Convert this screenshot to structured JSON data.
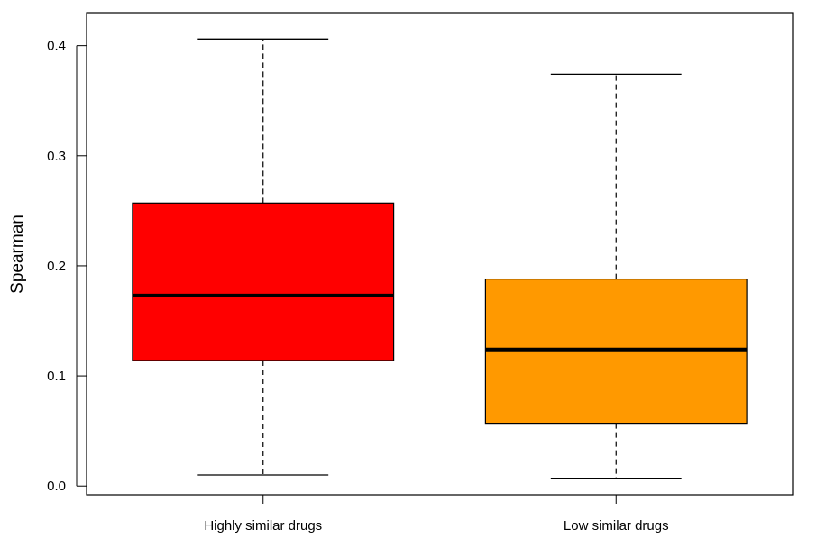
{
  "chart_data": {
    "type": "box",
    "title": "",
    "xlabel": "",
    "ylabel": "Spearman",
    "ylim": [
      -0.008,
      0.43
    ],
    "yticks": [
      0.0,
      0.1,
      0.2,
      0.3,
      0.4
    ],
    "ytick_labels": [
      "0.0",
      "0.1",
      "0.2",
      "0.3",
      "0.4"
    ],
    "grid": false,
    "legend": "none",
    "categories": [
      "Highly similar drugs",
      "Low similar drugs"
    ],
    "boxes": [
      {
        "category": "Highly similar drugs",
        "whisker_low": 0.01,
        "q1": 0.114,
        "median": 0.173,
        "q3": 0.257,
        "whisker_high": 0.406,
        "color": "#ff0000"
      },
      {
        "category": "Low similar drugs",
        "whisker_low": 0.007,
        "q1": 0.057,
        "median": 0.124,
        "q3": 0.188,
        "whisker_high": 0.374,
        "color": "#ff9900"
      }
    ]
  }
}
